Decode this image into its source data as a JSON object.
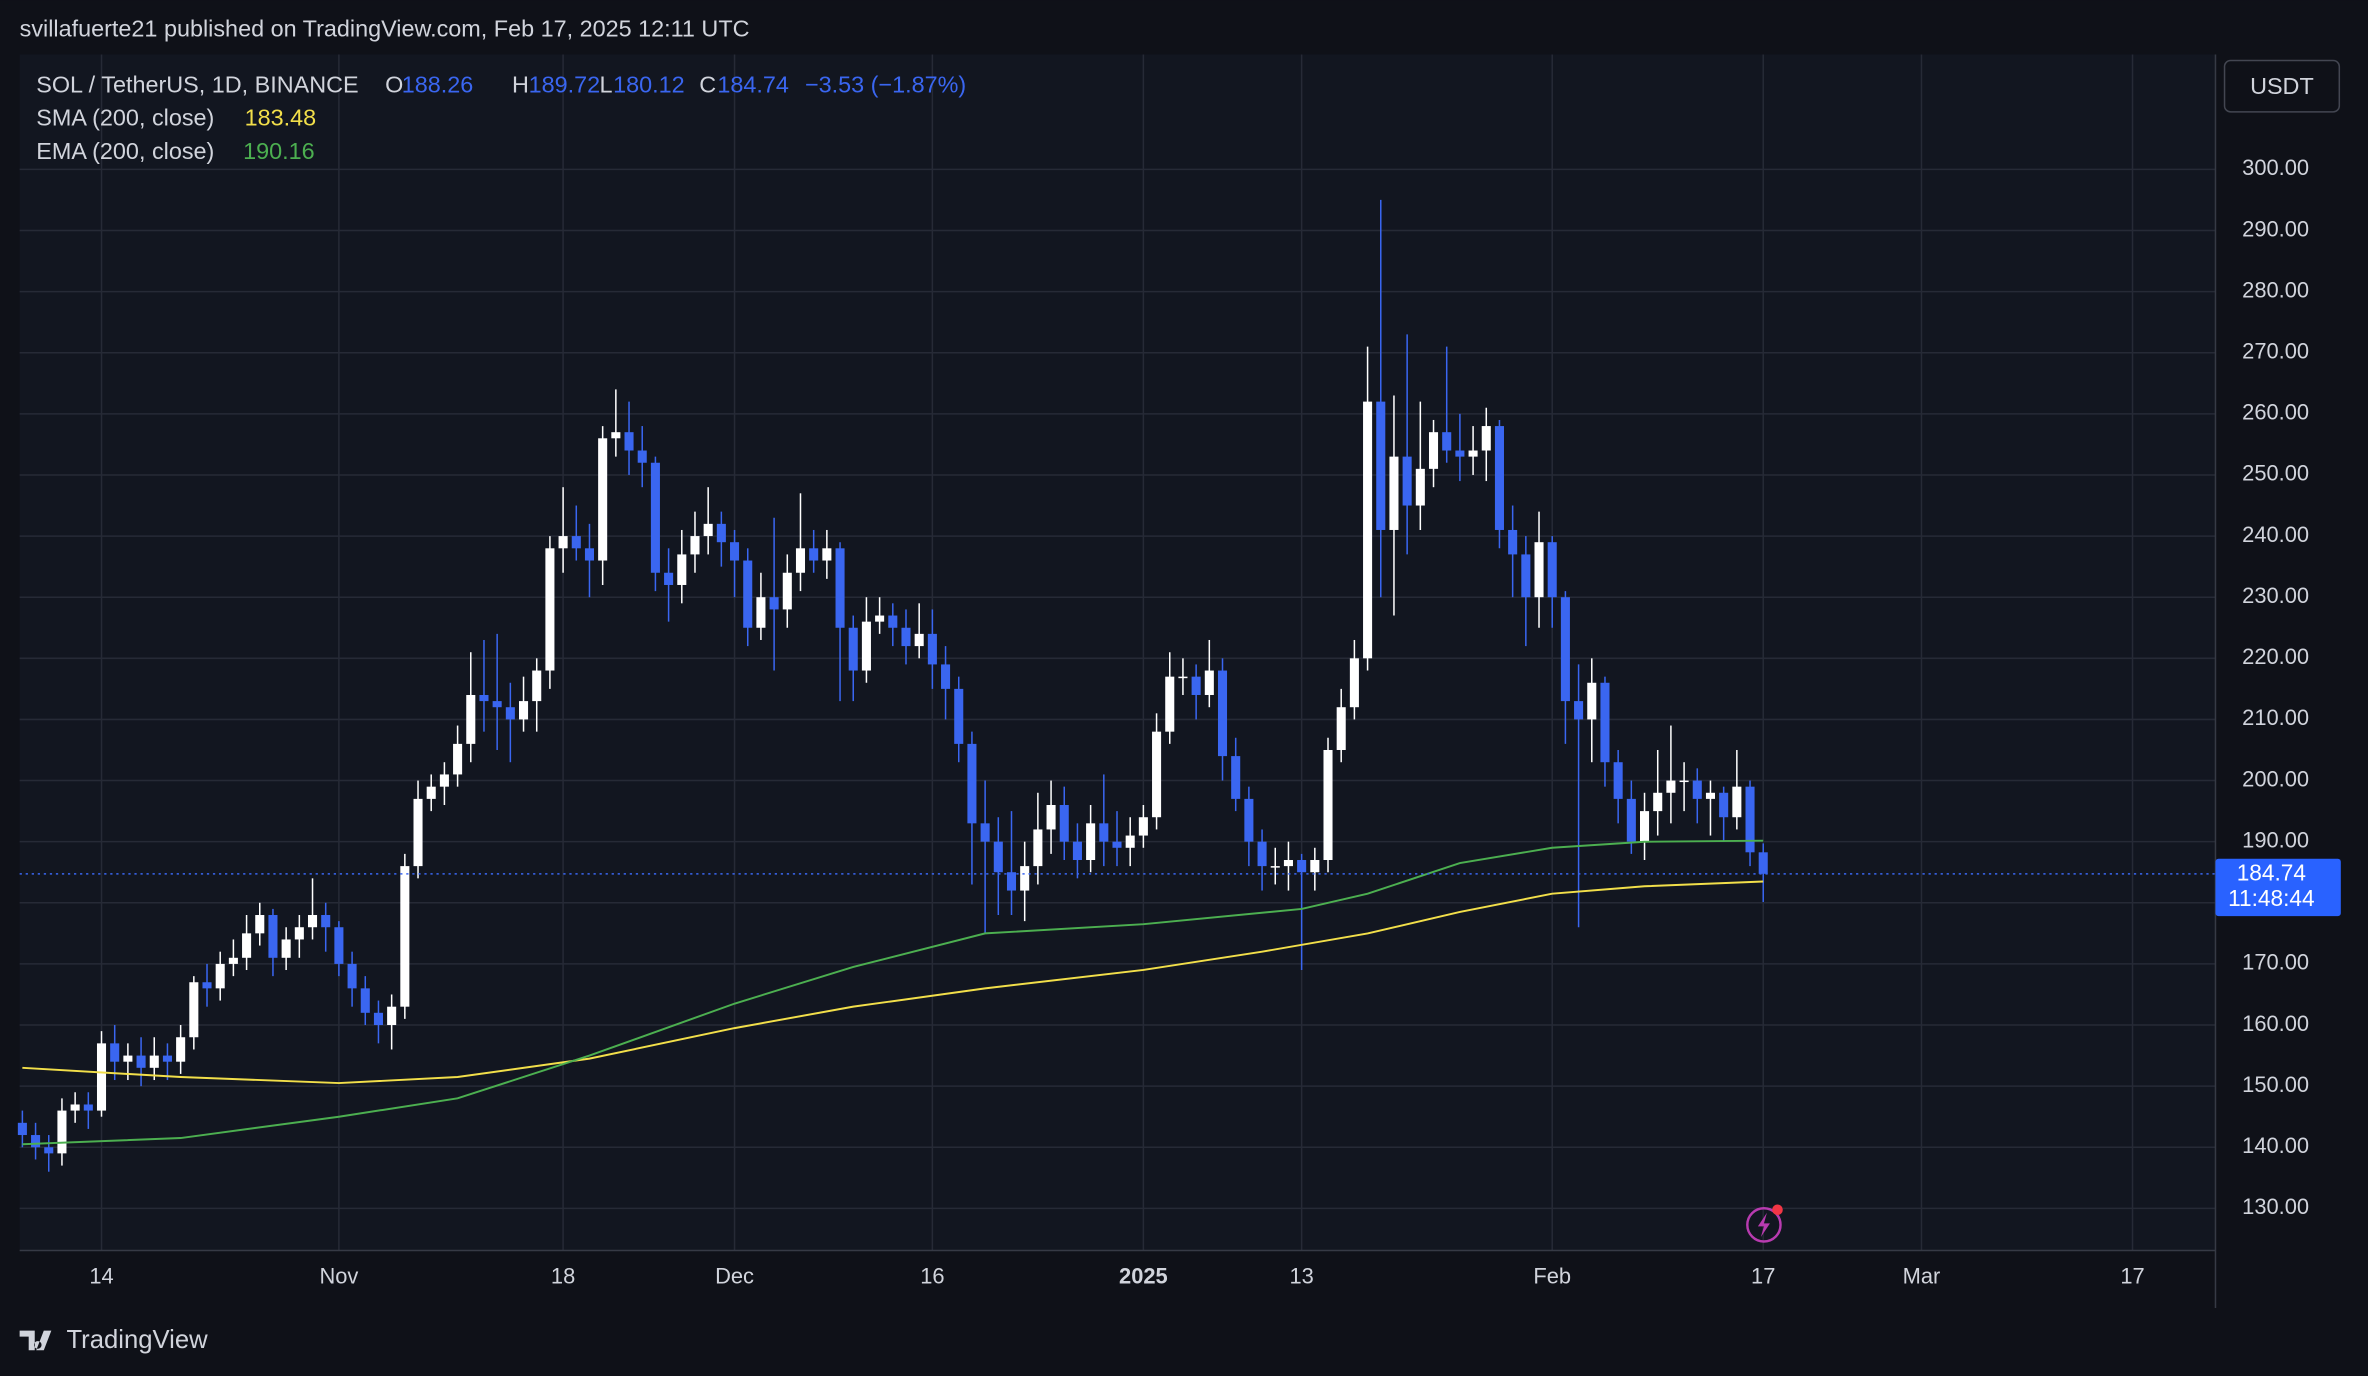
{
  "header": {
    "published": "svillafuerte21 published on TradingView.com, Feb 17, 2025 12:11 UTC"
  },
  "footer": {
    "brand": "TradingView"
  },
  "chart_data": {
    "type": "candlestick",
    "title": "SOL / TetherUS, 1D, BINANCE",
    "ohlc_letters": [
      "O",
      "H",
      "L",
      "C"
    ],
    "change_label": "−3.53 (−1.87%)",
    "currency": "USDT",
    "countdown": "11:48:44",
    "up_color": "#ffffff",
    "down_color": "#3a66f0",
    "grid": true,
    "x": [
      "2024-10-08",
      "2024-10-09",
      "2024-10-10",
      "2024-10-11",
      "2024-10-12",
      "2024-10-13",
      "2024-10-14",
      "2024-10-15",
      "2024-10-16",
      "2024-10-17",
      "2024-10-18",
      "2024-10-19",
      "2024-10-20",
      "2024-10-21",
      "2024-10-22",
      "2024-10-23",
      "2024-10-24",
      "2024-10-25",
      "2024-10-26",
      "2024-10-27",
      "2024-10-28",
      "2024-10-29",
      "2024-10-30",
      "2024-10-31",
      "2024-11-01",
      "2024-11-02",
      "2024-11-03",
      "2024-11-04",
      "2024-11-05",
      "2024-11-06",
      "2024-11-07",
      "2024-11-08",
      "2024-11-09",
      "2024-11-10",
      "2024-11-11",
      "2024-11-12",
      "2024-11-13",
      "2024-11-14",
      "2024-11-15",
      "2024-11-16",
      "2024-11-17",
      "2024-11-18",
      "2024-11-19",
      "2024-11-20",
      "2024-11-21",
      "2024-11-22",
      "2024-11-23",
      "2024-11-24",
      "2024-11-25",
      "2024-11-26",
      "2024-11-27",
      "2024-11-28",
      "2024-11-29",
      "2024-11-30",
      "2024-12-01",
      "2024-12-02",
      "2024-12-03",
      "2024-12-04",
      "2024-12-05",
      "2024-12-06",
      "2024-12-07",
      "2024-12-08",
      "2024-12-09",
      "2024-12-10",
      "2024-12-11",
      "2024-12-12",
      "2024-12-13",
      "2024-12-14",
      "2024-12-15",
      "2024-12-16",
      "2024-12-17",
      "2024-12-18",
      "2024-12-19",
      "2024-12-20",
      "2024-12-21",
      "2024-12-22",
      "2024-12-23",
      "2024-12-24",
      "2024-12-25",
      "2024-12-26",
      "2024-12-27",
      "2024-12-28",
      "2024-12-29",
      "2024-12-30",
      "2024-12-31",
      "2025-01-01",
      "2025-01-02",
      "2025-01-03",
      "2025-01-04",
      "2025-01-05",
      "2025-01-06",
      "2025-01-07",
      "2025-01-08",
      "2025-01-09",
      "2025-01-10",
      "2025-01-11",
      "2025-01-12",
      "2025-01-13",
      "2025-01-14",
      "2025-01-15",
      "2025-01-16",
      "2025-01-17",
      "2025-01-18",
      "2025-01-19",
      "2025-01-20",
      "2025-01-21",
      "2025-01-22",
      "2025-01-23",
      "2025-01-24",
      "2025-01-25",
      "2025-01-26",
      "2025-01-27",
      "2025-01-28",
      "2025-01-29",
      "2025-01-30",
      "2025-01-31",
      "2025-02-01",
      "2025-02-02",
      "2025-02-03",
      "2025-02-04",
      "2025-02-05",
      "2025-02-06",
      "2025-02-07",
      "2025-02-08",
      "2025-02-09",
      "2025-02-10",
      "2025-02-11",
      "2025-02-12",
      "2025-02-13",
      "2025-02-14",
      "2025-02-15",
      "2025-02-16",
      "2025-02-17"
    ],
    "open": [
      144,
      142,
      140,
      139,
      146,
      147,
      146,
      157,
      154,
      155,
      153,
      155,
      154,
      158,
      167,
      166,
      170,
      171,
      175,
      178,
      171,
      174,
      176,
      178,
      176,
      170,
      166,
      162,
      160,
      163,
      186,
      197,
      199,
      201,
      206,
      214,
      213,
      212,
      210,
      213,
      218,
      238,
      240,
      238,
      236,
      256,
      257,
      254,
      252,
      234,
      232,
      237,
      240,
      242,
      239,
      236,
      225,
      230,
      228,
      234,
      238,
      236,
      238,
      225,
      218,
      226,
      227,
      225,
      222,
      224,
      219,
      215,
      206,
      193,
      190,
      185,
      182,
      186,
      192,
      196,
      190,
      187,
      193,
      190,
      189,
      191,
      194,
      208,
      217,
      217,
      214,
      218,
      204,
      197,
      190,
      186,
      186,
      187,
      185,
      187,
      205,
      212,
      220,
      262,
      241,
      253,
      245,
      251,
      257,
      254,
      253,
      254,
      258,
      241,
      237,
      230,
      239,
      230,
      213,
      210,
      216,
      203,
      197,
      190,
      195,
      198,
      200,
      200,
      197,
      198,
      194,
      199,
      188.26
    ],
    "high": [
      146,
      144,
      142,
      148,
      149,
      149,
      159,
      160,
      157,
      158,
      158,
      157,
      160,
      168,
      170,
      172,
      174,
      178,
      180,
      179,
      176,
      178,
      184,
      180,
      177,
      172,
      168,
      164,
      165,
      188,
      200,
      201,
      203,
      209,
      221,
      223,
      224,
      216,
      217,
      220,
      240,
      248,
      245,
      242,
      258,
      264,
      262,
      258,
      253,
      238,
      241,
      244,
      248,
      244,
      241,
      238,
      234,
      243,
      237,
      247,
      241,
      241,
      239,
      227,
      230,
      230,
      229,
      228,
      229,
      228,
      222,
      217,
      208,
      200,
      194,
      195,
      190,
      198,
      200,
      199,
      193,
      196,
      201,
      195,
      194,
      196,
      211,
      221,
      220,
      219,
      223,
      220,
      207,
      199,
      192,
      189,
      190,
      188,
      189,
      207,
      215,
      223,
      271,
      295,
      263,
      273,
      262,
      259,
      271,
      260,
      258,
      261,
      259,
      245,
      240,
      244,
      240,
      231,
      219,
      220,
      217,
      205,
      200,
      198,
      205,
      209,
      203,
      202,
      200,
      199,
      205,
      200,
      189.72
    ],
    "low": [
      140,
      138,
      136,
      137,
      144,
      143,
      145,
      151,
      151,
      150,
      151,
      151,
      152,
      156,
      163,
      164,
      168,
      169,
      173,
      168,
      169,
      171,
      174,
      172,
      168,
      163,
      160,
      157,
      156,
      161,
      184,
      195,
      196,
      199,
      203,
      208,
      205,
      203,
      208,
      208,
      215,
      234,
      236,
      230,
      232,
      253,
      250,
      248,
      231,
      226,
      229,
      234,
      237,
      235,
      230,
      222,
      223,
      218,
      225,
      231,
      234,
      233,
      213,
      213,
      216,
      224,
      222,
      219,
      220,
      215,
      210,
      203,
      183,
      175,
      178,
      178,
      177,
      183,
      188,
      187,
      184,
      185,
      186,
      186,
      186,
      189,
      192,
      206,
      214,
      210,
      212,
      200,
      195,
      186,
      182,
      183,
      182,
      169,
      182,
      185,
      203,
      210,
      218,
      230,
      227,
      237,
      241,
      248,
      252,
      249,
      250,
      249,
      238,
      230,
      222,
      225,
      225,
      206,
      176,
      203,
      199,
      193,
      188,
      187,
      191,
      193,
      195,
      193,
      191,
      190,
      192,
      186,
      180.12
    ],
    "close": [
      142,
      140,
      139,
      146,
      147,
      146,
      157,
      154,
      155,
      153,
      155,
      154,
      158,
      167,
      166,
      170,
      171,
      175,
      178,
      171,
      174,
      176,
      178,
      176,
      170,
      166,
      162,
      160,
      163,
      186,
      197,
      199,
      201,
      206,
      214,
      213,
      212,
      210,
      213,
      218,
      238,
      240,
      238,
      236,
      256,
      257,
      254,
      252,
      234,
      232,
      237,
      240,
      242,
      239,
      236,
      225,
      230,
      228,
      234,
      238,
      236,
      238,
      225,
      218,
      226,
      227,
      225,
      222,
      224,
      219,
      215,
      206,
      193,
      190,
      185,
      182,
      186,
      192,
      196,
      190,
      187,
      193,
      190,
      189,
      191,
      194,
      208,
      217,
      217,
      214,
      218,
      204,
      197,
      190,
      186,
      186,
      187,
      185,
      187,
      205,
      212,
      220,
      262,
      241,
      253,
      245,
      251,
      257,
      254,
      253,
      254,
      258,
      241,
      237,
      230,
      239,
      230,
      213,
      210,
      216,
      203,
      197,
      190,
      195,
      198,
      200,
      200,
      197,
      198,
      194,
      199,
      188.26,
      184.74
    ],
    "series": [
      {
        "name": "SMA (200, close)",
        "color": "#f2df4a",
        "x": [
          "2024-10-08",
          "2024-10-20",
          "2024-11-01",
          "2024-11-10",
          "2024-11-20",
          "2024-12-01",
          "2024-12-10",
          "2024-12-20",
          "2025-01-01",
          "2025-01-10",
          "2025-01-18",
          "2025-01-25",
          "2025-02-01",
          "2025-02-08",
          "2025-02-17"
        ],
        "values": [
          153,
          151.5,
          150.5,
          151.5,
          154.5,
          159.5,
          163,
          166,
          169,
          172,
          175,
          178.5,
          181.5,
          182.7,
          183.48
        ]
      },
      {
        "name": "EMA (200, close)",
        "color": "#4caf50",
        "x": [
          "2024-10-08",
          "2024-10-20",
          "2024-11-01",
          "2024-11-10",
          "2024-11-20",
          "2024-12-01",
          "2024-12-10",
          "2024-12-20",
          "2025-01-01",
          "2025-01-13",
          "2025-01-18",
          "2025-01-25",
          "2025-02-01",
          "2025-02-08",
          "2025-02-17"
        ],
        "values": [
          140.5,
          141.5,
          145,
          148,
          155,
          163.5,
          169.5,
          175,
          176.5,
          179,
          181.5,
          186.5,
          189,
          190,
          190.16
        ]
      }
    ],
    "ylim": [
      123.1,
      318.8
    ],
    "yticks": [
      {
        "value": 130,
        "label": "130.00"
      },
      {
        "value": 140,
        "label": "140.00"
      },
      {
        "value": 150,
        "label": "150.00"
      },
      {
        "value": 160,
        "label": "160.00"
      },
      {
        "value": 170,
        "label": "170.00"
      },
      {
        "value": 180,
        "label": "180.00"
      },
      {
        "value": 190,
        "label": "190.00"
      },
      {
        "value": 200,
        "label": "200.00"
      },
      {
        "value": 210,
        "label": "210.00"
      },
      {
        "value": 220,
        "label": "220.00"
      },
      {
        "value": 230,
        "label": "230.00"
      },
      {
        "value": 240,
        "label": "240.00"
      },
      {
        "value": 250,
        "label": "250.00"
      },
      {
        "value": 260,
        "label": "260.00"
      },
      {
        "value": 270,
        "label": "270.00"
      },
      {
        "value": 280,
        "label": "280.00"
      },
      {
        "value": 290,
        "label": "290.00"
      },
      {
        "value": 300,
        "label": "300.00"
      }
    ],
    "xlim": [
      "2024-10-07T19:00:00Z",
      "2025-03-23T07:00:00Z"
    ],
    "xticks": [
      {
        "value": "2024-10-14",
        "label": "14"
      },
      {
        "value": "2024-11-01",
        "label": "Nov"
      },
      {
        "value": "2024-11-18",
        "label": "18"
      },
      {
        "value": "2024-12-01",
        "label": "Dec"
      },
      {
        "value": "2024-12-16",
        "label": "16"
      },
      {
        "value": "2025-01-01",
        "label": "2025"
      },
      {
        "value": "2025-01-13",
        "label": "13"
      },
      {
        "value": "2025-02-01",
        "label": "Feb"
      },
      {
        "value": "2025-02-17",
        "label": "17"
      },
      {
        "value": "2025-03-01",
        "label": "Mar"
      },
      {
        "value": "2025-03-17",
        "label": "17"
      }
    ]
  }
}
